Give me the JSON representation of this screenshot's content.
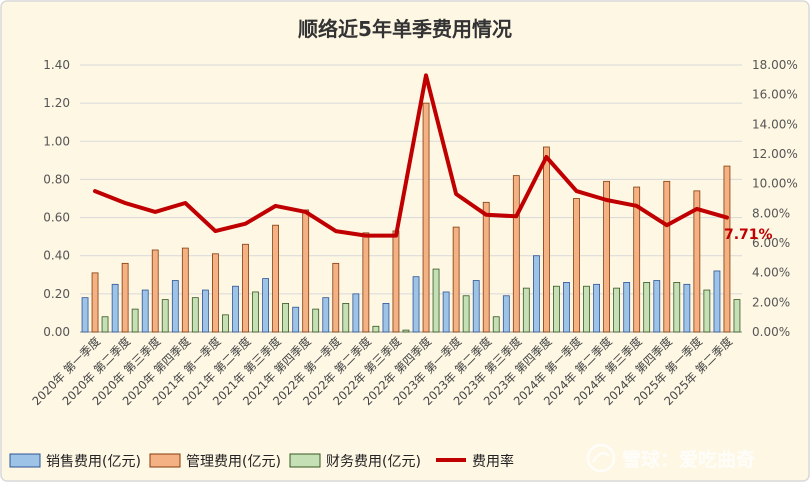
{
  "chart_data": {
    "type": "bar",
    "title": "顺络近5年单季费用情况",
    "categories": [
      "2020年 第一季度",
      "2020年 第二季度",
      "2020年 第三季度",
      "2020年 第四季度",
      "2021年 第一季度",
      "2021年 第二季度",
      "2021年 第三季度",
      "2021年 第四季度",
      "2022年 第一季度",
      "2022年 第二季度",
      "2022年 第三季度",
      "2022年 第四季度",
      "2023年 第一季度",
      "2023年 第二季度",
      "2023年 第三季度",
      "2023年 第四季度",
      "2024年 第一季度",
      "2024年 第二季度",
      "2024年 第三季度",
      "2024年 第四季度",
      "2025年 第一季度",
      "2025年 第二季度"
    ],
    "series": [
      {
        "name": "销售费用(亿元)",
        "axis": "left",
        "color": "#9dc3e6",
        "values": [
          0.18,
          0.25,
          0.22,
          0.27,
          0.22,
          0.24,
          0.28,
          0.13,
          0.18,
          0.2,
          0.15,
          0.29,
          0.21,
          0.27,
          0.19,
          0.4,
          0.26,
          0.25,
          0.26,
          0.27,
          0.25,
          0.32
        ]
      },
      {
        "name": "管理费用(亿元)",
        "axis": "left",
        "color": "#f4b183",
        "values": [
          0.31,
          0.36,
          0.43,
          0.44,
          0.41,
          0.46,
          0.56,
          0.64,
          0.36,
          0.52,
          0.53,
          1.2,
          0.55,
          0.68,
          0.82,
          0.97,
          0.7,
          0.79,
          0.76,
          0.79,
          0.74,
          0.87
        ]
      },
      {
        "name": "财务费用(亿元)",
        "axis": "left",
        "color": "#c5e0b4",
        "values": [
          0.08,
          0.12,
          0.17,
          0.18,
          0.09,
          0.21,
          0.15,
          0.12,
          0.15,
          0.03,
          0.01,
          0.33,
          0.19,
          0.08,
          0.23,
          0.24,
          0.24,
          0.23,
          0.26,
          0.26,
          0.22,
          0.17
        ]
      },
      {
        "name": "费用率",
        "axis": "right",
        "type": "line",
        "color": "#c00000",
        "values": [
          9.5,
          8.7,
          8.1,
          8.7,
          6.8,
          7.3,
          8.5,
          8.1,
          6.8,
          6.5,
          6.5,
          17.3,
          9.3,
          7.9,
          7.8,
          11.8,
          9.5,
          8.9,
          8.5,
          7.2,
          8.3,
          7.71
        ]
      }
    ],
    "y_left": {
      "min": 0,
      "max": 1.4,
      "ticks": [
        "0.00",
        "0.20",
        "0.40",
        "0.60",
        "0.80",
        "1.00",
        "1.20",
        "1.40"
      ]
    },
    "y_right": {
      "min": 0,
      "max": 18,
      "ticks": [
        "0.00%",
        "2.00%",
        "4.00%",
        "6.00%",
        "8.00%",
        "10.00%",
        "12.00%",
        "14.00%",
        "16.00%",
        "18.00%"
      ]
    },
    "grid": true,
    "legend": "bottom-left",
    "annotation": "7.71%",
    "watermark": "雪球：爱吃曲奇",
    "colors": {
      "background": "#fdf7e4",
      "border": "#d9d9d9",
      "annotation": "#c00000"
    }
  }
}
